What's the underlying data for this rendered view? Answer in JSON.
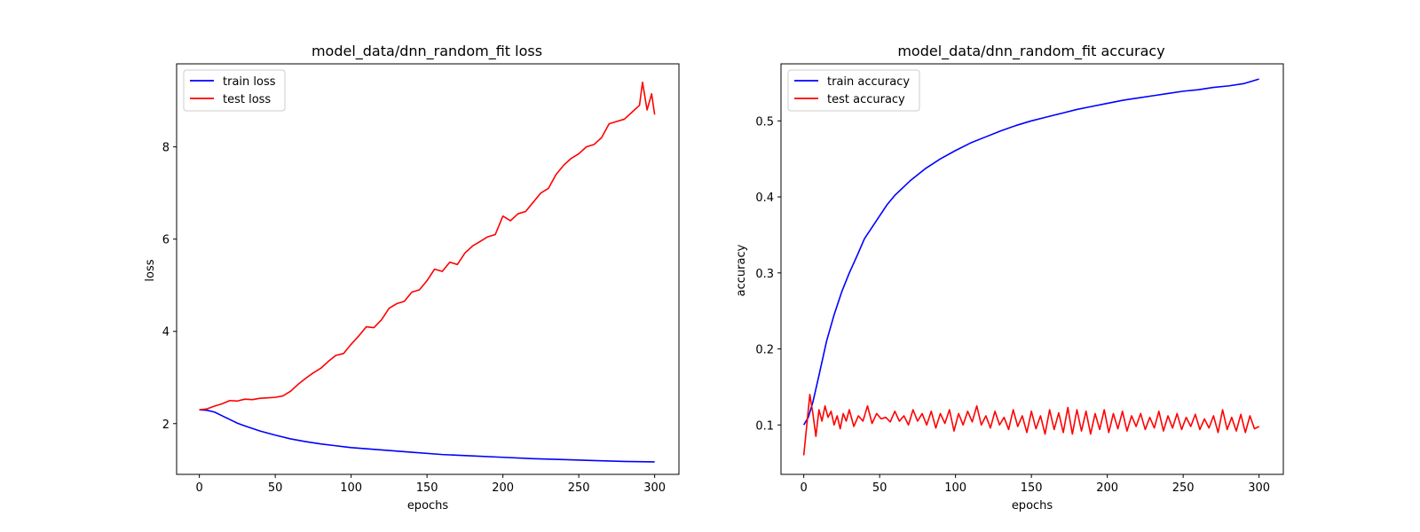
{
  "chart_data": [
    {
      "type": "line",
      "title": "model_data/dnn_random_fit loss",
      "xlabel": "epochs",
      "ylabel": "loss",
      "xlim": [
        -15,
        316
      ],
      "ylim": [
        0.9,
        9.8
      ],
      "xticks": [
        0,
        50,
        100,
        150,
        200,
        250,
        300
      ],
      "yticks": [
        2,
        4,
        6,
        8
      ],
      "grid": false,
      "legend_position": "upper-left",
      "series": [
        {
          "name": "train loss",
          "color": "#0000ff",
          "x": [
            0,
            5,
            10,
            15,
            20,
            25,
            30,
            40,
            50,
            60,
            70,
            80,
            90,
            100,
            120,
            140,
            160,
            180,
            200,
            220,
            240,
            260,
            280,
            300
          ],
          "values": [
            2.3,
            2.29,
            2.25,
            2.17,
            2.09,
            2.01,
            1.95,
            1.84,
            1.75,
            1.67,
            1.61,
            1.56,
            1.52,
            1.48,
            1.43,
            1.38,
            1.33,
            1.3,
            1.27,
            1.24,
            1.22,
            1.2,
            1.18,
            1.17
          ]
        },
        {
          "name": "test loss",
          "color": "#ff0000",
          "x": [
            0,
            5,
            10,
            15,
            20,
            25,
            30,
            35,
            40,
            45,
            50,
            55,
            60,
            65,
            70,
            75,
            80,
            85,
            90,
            95,
            100,
            105,
            110,
            115,
            120,
            125,
            130,
            135,
            140,
            145,
            150,
            155,
            160,
            165,
            170,
            175,
            180,
            185,
            190,
            195,
            200,
            205,
            210,
            215,
            220,
            225,
            230,
            235,
            240,
            245,
            250,
            255,
            260,
            265,
            270,
            275,
            280,
            285,
            290,
            292,
            295,
            298,
            300
          ],
          "values": [
            2.3,
            2.32,
            2.38,
            2.43,
            2.5,
            2.49,
            2.53,
            2.52,
            2.55,
            2.56,
            2.57,
            2.6,
            2.7,
            2.85,
            2.98,
            3.1,
            3.2,
            3.35,
            3.48,
            3.52,
            3.72,
            3.9,
            4.1,
            4.08,
            4.25,
            4.5,
            4.6,
            4.65,
            4.85,
            4.9,
            5.1,
            5.35,
            5.3,
            5.5,
            5.45,
            5.7,
            5.85,
            5.95,
            6.05,
            6.1,
            6.5,
            6.4,
            6.55,
            6.6,
            6.8,
            7.0,
            7.1,
            7.4,
            7.6,
            7.75,
            7.85,
            8.0,
            8.05,
            8.2,
            8.5,
            8.55,
            8.6,
            8.75,
            8.9,
            9.4,
            8.8,
            9.15,
            8.7
          ]
        }
      ]
    },
    {
      "type": "line",
      "title": "model_data/dnn_random_fit accuracy",
      "xlabel": "epochs",
      "ylabel": "accuracy",
      "xlim": [
        -15,
        316
      ],
      "ylim": [
        0.035,
        0.575
      ],
      "xticks": [
        0,
        50,
        100,
        150,
        200,
        250,
        300
      ],
      "yticks": [
        0.1,
        0.2,
        0.3,
        0.4,
        0.5
      ],
      "grid": false,
      "legend_position": "upper-left",
      "series": [
        {
          "name": "train accuracy",
          "color": "#0000ff",
          "x": [
            0,
            3,
            6,
            10,
            15,
            20,
            25,
            30,
            35,
            40,
            45,
            50,
            55,
            60,
            70,
            80,
            90,
            100,
            110,
            120,
            130,
            140,
            150,
            160,
            170,
            180,
            190,
            200,
            210,
            220,
            230,
            240,
            250,
            260,
            270,
            280,
            290,
            295,
            300
          ],
          "values": [
            0.1,
            0.11,
            0.13,
            0.165,
            0.21,
            0.245,
            0.275,
            0.3,
            0.322,
            0.345,
            0.36,
            0.375,
            0.39,
            0.402,
            0.421,
            0.437,
            0.45,
            0.461,
            0.471,
            0.479,
            0.487,
            0.494,
            0.5,
            0.505,
            0.51,
            0.515,
            0.519,
            0.523,
            0.527,
            0.53,
            0.533,
            0.536,
            0.539,
            0.541,
            0.544,
            0.546,
            0.549,
            0.552,
            0.555
          ]
        },
        {
          "name": "test accuracy",
          "color": "#ff0000",
          "x": [
            0,
            2,
            4,
            6,
            8,
            10,
            12,
            14,
            16,
            18,
            20,
            22,
            24,
            26,
            28,
            30,
            33,
            36,
            39,
            42,
            45,
            48,
            51,
            54,
            57,
            60,
            63,
            66,
            69,
            72,
            75,
            78,
            81,
            84,
            87,
            90,
            93,
            96,
            99,
            102,
            105,
            108,
            111,
            114,
            117,
            120,
            123,
            126,
            129,
            132,
            135,
            138,
            141,
            144,
            147,
            150,
            153,
            156,
            159,
            162,
            165,
            168,
            171,
            174,
            177,
            180,
            183,
            186,
            189,
            192,
            195,
            198,
            201,
            204,
            207,
            210,
            213,
            216,
            219,
            222,
            225,
            228,
            231,
            234,
            237,
            240,
            243,
            246,
            249,
            252,
            255,
            258,
            261,
            264,
            267,
            270,
            273,
            276,
            279,
            282,
            285,
            288,
            291,
            294,
            297,
            300
          ],
          "values": [
            0.06,
            0.1,
            0.14,
            0.115,
            0.085,
            0.12,
            0.105,
            0.125,
            0.11,
            0.118,
            0.1,
            0.112,
            0.095,
            0.115,
            0.105,
            0.12,
            0.098,
            0.112,
            0.105,
            0.125,
            0.102,
            0.115,
            0.108,
            0.11,
            0.104,
            0.118,
            0.105,
            0.112,
            0.1,
            0.12,
            0.105,
            0.115,
            0.1,
            0.118,
            0.096,
            0.115,
            0.102,
            0.12,
            0.092,
            0.115,
            0.1,
            0.118,
            0.104,
            0.125,
            0.1,
            0.112,
            0.096,
            0.118,
            0.1,
            0.11,
            0.094,
            0.12,
            0.098,
            0.112,
            0.09,
            0.118,
            0.095,
            0.112,
            0.088,
            0.12,
            0.094,
            0.116,
            0.09,
            0.123,
            0.088,
            0.12,
            0.092,
            0.118,
            0.088,
            0.115,
            0.094,
            0.12,
            0.09,
            0.115,
            0.095,
            0.118,
            0.092,
            0.112,
            0.098,
            0.115,
            0.094,
            0.11,
            0.096,
            0.118,
            0.092,
            0.112,
            0.096,
            0.115,
            0.094,
            0.11,
            0.098,
            0.114,
            0.094,
            0.108,
            0.096,
            0.112,
            0.09,
            0.12,
            0.094,
            0.11,
            0.092,
            0.114,
            0.09,
            0.112,
            0.095,
            0.098
          ]
        }
      ]
    }
  ]
}
